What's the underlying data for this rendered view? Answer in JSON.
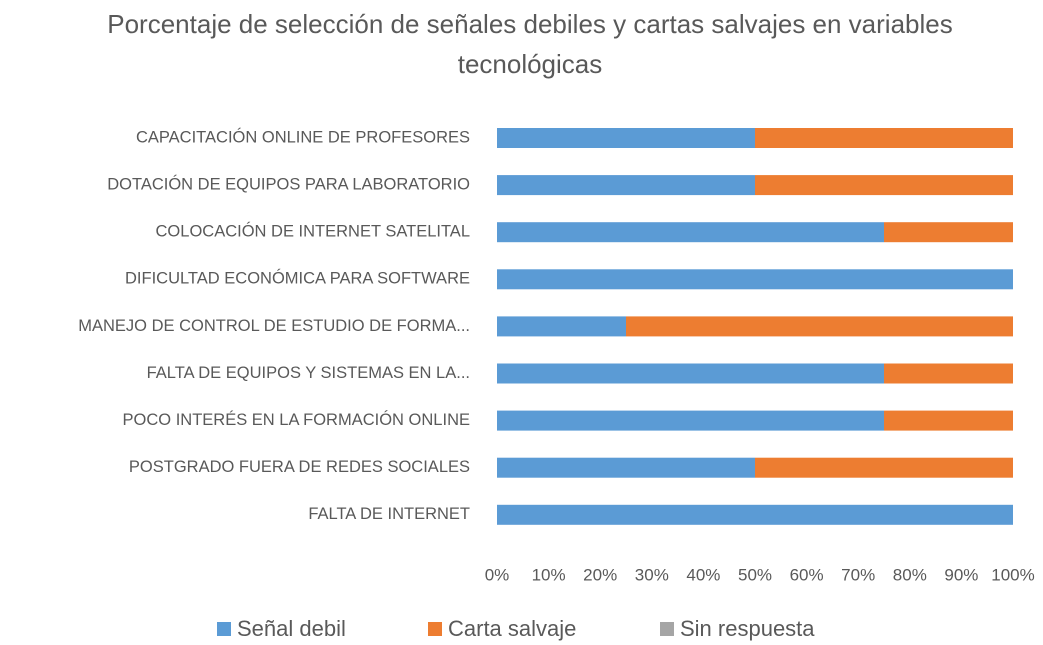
{
  "chart_data": {
    "type": "stacked_barh",
    "title": "Porcentaje de selección de señales debiles y cartas salvajes en variables tecnológicas",
    "categories": [
      "CAPACITACIÓN ONLINE DE PROFESORES",
      "DOTACIÓN DE EQUIPOS PARA LABORATORIO",
      "COLOCACIÓN DE INTERNET SATELITAL",
      "DIFICULTAD ECONÓMICA PARA SOFTWARE",
      "MANEJO DE CONTROL DE ESTUDIO DE FORMA...",
      "FALTA DE EQUIPOS Y SISTEMAS EN LA...",
      "POCO INTERÉS EN LA FORMACIÓN ONLINE",
      "POSTGRADO FUERA DE REDES SOCIALES",
      "FALTA DE INTERNET"
    ],
    "series": [
      {
        "name": "Señal debil",
        "color": "#5b9bd5",
        "values": [
          50,
          50,
          75,
          100,
          25,
          75,
          75,
          50,
          100
        ]
      },
      {
        "name": "Carta salvaje",
        "color": "#ed7d31",
        "values": [
          50,
          50,
          25,
          0,
          75,
          25,
          25,
          50,
          0
        ]
      },
      {
        "name": "Sin respuesta",
        "color": "#a5a5a5",
        "values": [
          0,
          0,
          0,
          0,
          0,
          0,
          0,
          0,
          0
        ]
      }
    ],
    "xlim": [
      0,
      100
    ],
    "xticks": [
      {
        "value": 0,
        "label": "0%"
      },
      {
        "value": 10,
        "label": "10%"
      },
      {
        "value": 20,
        "label": "20%"
      },
      {
        "value": 30,
        "label": "30%"
      },
      {
        "value": 40,
        "label": "40%"
      },
      {
        "value": 50,
        "label": "50%"
      },
      {
        "value": 60,
        "label": "60%"
      },
      {
        "value": 70,
        "label": "70%"
      },
      {
        "value": 80,
        "label": "80%"
      },
      {
        "value": 90,
        "label": "90%"
      },
      {
        "value": 100,
        "label": "100%"
      }
    ],
    "grid": false,
    "legend": "bottom"
  }
}
